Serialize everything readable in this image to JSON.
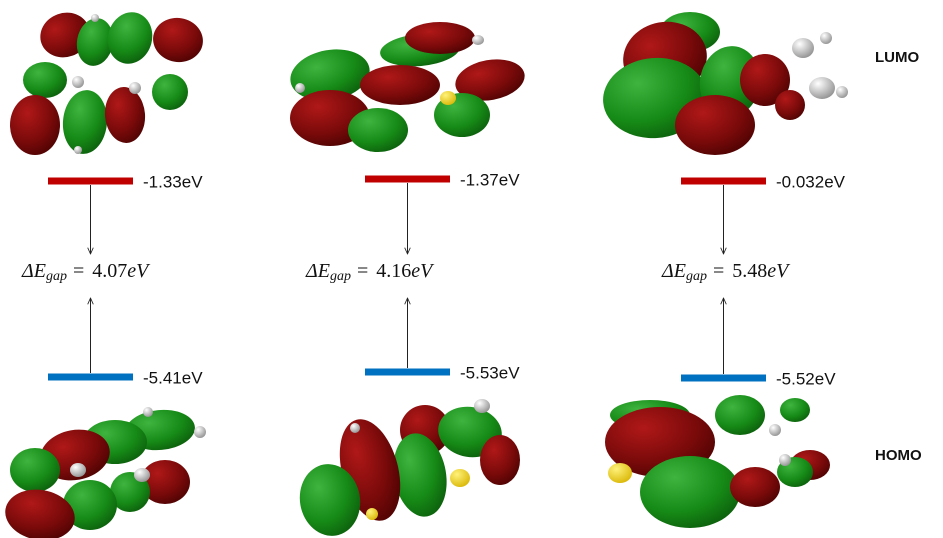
{
  "labels": {
    "lumo": "LUMO",
    "homo": "HOMO"
  },
  "gap_expression": {
    "symbol": "ΔE",
    "subscript": "gap",
    "equals": "="
  },
  "columns": [
    {
      "lumo_energy": "-1.33eV",
      "homo_energy": "-5.41eV",
      "gap_value": "4.07",
      "gap_unit": "eV"
    },
    {
      "lumo_energy": "-1.37eV",
      "homo_energy": "-5.53eV",
      "gap_value": "4.16",
      "gap_unit": "eV"
    },
    {
      "lumo_energy": "-0.032eV",
      "homo_energy": "-5.52eV",
      "gap_value": "5.48",
      "gap_unit": "eV"
    }
  ]
}
